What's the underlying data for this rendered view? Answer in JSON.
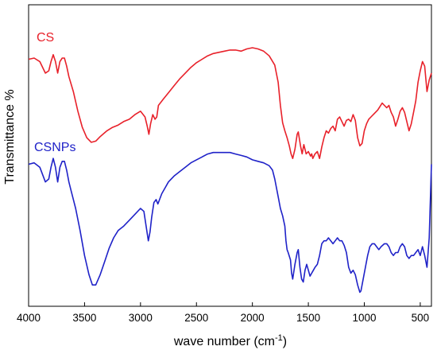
{
  "chart_data": {
    "type": "line",
    "xlabel": "wave number (cm",
    "xlabel_sup": "-1",
    "xlabel_close": ")",
    "ylabel": "Transmittance %",
    "xlim": [
      4000,
      400
    ],
    "x_reversed": true,
    "y_ticks_shown": false,
    "grid": false,
    "x_ticks": [
      "4000",
      "3500",
      "3000",
      "2500",
      "2000",
      "1500",
      "1000",
      "500"
    ],
    "series": [
      {
        "name": "CS",
        "color": "#e8212a",
        "points": [
          [
            4000,
            10
          ],
          [
            3950,
            9
          ],
          [
            3900,
            12
          ],
          [
            3850,
            22
          ],
          [
            3820,
            20
          ],
          [
            3800,
            12
          ],
          [
            3780,
            6
          ],
          [
            3760,
            12
          ],
          [
            3740,
            22
          ],
          [
            3720,
            12
          ],
          [
            3700,
            9
          ],
          [
            3680,
            9
          ],
          [
            3660,
            16
          ],
          [
            3640,
            25
          ],
          [
            3600,
            38
          ],
          [
            3560,
            55
          ],
          [
            3520,
            69
          ],
          [
            3480,
            78
          ],
          [
            3440,
            82
          ],
          [
            3400,
            81
          ],
          [
            3360,
            77
          ],
          [
            3300,
            72
          ],
          [
            3250,
            69
          ],
          [
            3200,
            67
          ],
          [
            3150,
            64
          ],
          [
            3100,
            62
          ],
          [
            3050,
            58
          ],
          [
            3000,
            55
          ],
          [
            2960,
            60
          ],
          [
            2940,
            68
          ],
          [
            2925,
            75
          ],
          [
            2910,
            66
          ],
          [
            2890,
            58
          ],
          [
            2870,
            62
          ],
          [
            2855,
            60
          ],
          [
            2840,
            50
          ],
          [
            2800,
            45
          ],
          [
            2750,
            39
          ],
          [
            2700,
            33
          ],
          [
            2650,
            27
          ],
          [
            2600,
            22
          ],
          [
            2550,
            17
          ],
          [
            2500,
            13
          ],
          [
            2450,
            10
          ],
          [
            2400,
            7
          ],
          [
            2350,
            5
          ],
          [
            2300,
            4
          ],
          [
            2250,
            3
          ],
          [
            2200,
            2
          ],
          [
            2150,
            2
          ],
          [
            2100,
            3
          ],
          [
            2050,
            1
          ],
          [
            2000,
            0
          ],
          [
            1950,
            1
          ],
          [
            1900,
            3
          ],
          [
            1850,
            7
          ],
          [
            1800,
            15
          ],
          [
            1770,
            30
          ],
          [
            1750,
            50
          ],
          [
            1730,
            65
          ],
          [
            1710,
            72
          ],
          [
            1690,
            78
          ],
          [
            1670,
            85
          ],
          [
            1655,
            92
          ],
          [
            1640,
            96
          ],
          [
            1620,
            88
          ],
          [
            1600,
            75
          ],
          [
            1590,
            73
          ],
          [
            1570,
            85
          ],
          [
            1555,
            92
          ],
          [
            1540,
            84
          ],
          [
            1520,
            92
          ],
          [
            1500,
            90
          ],
          [
            1480,
            94
          ],
          [
            1470,
            92
          ],
          [
            1460,
            96
          ],
          [
            1440,
            92
          ],
          [
            1420,
            90
          ],
          [
            1400,
            96
          ],
          [
            1380,
            86
          ],
          [
            1360,
            78
          ],
          [
            1340,
            72
          ],
          [
            1320,
            74
          ],
          [
            1300,
            70
          ],
          [
            1280,
            68
          ],
          [
            1260,
            72
          ],
          [
            1240,
            62
          ],
          [
            1220,
            60
          ],
          [
            1200,
            64
          ],
          [
            1180,
            68
          ],
          [
            1160,
            63
          ],
          [
            1140,
            62
          ],
          [
            1120,
            64
          ],
          [
            1100,
            58
          ],
          [
            1080,
            63
          ],
          [
            1060,
            78
          ],
          [
            1040,
            85
          ],
          [
            1020,
            83
          ],
          [
            1000,
            72
          ],
          [
            980,
            66
          ],
          [
            960,
            62
          ],
          [
            940,
            60
          ],
          [
            920,
            58
          ],
          [
            900,
            56
          ],
          [
            880,
            54
          ],
          [
            860,
            51
          ],
          [
            840,
            48
          ],
          [
            820,
            50
          ],
          [
            800,
            52
          ],
          [
            780,
            50
          ],
          [
            760,
            56
          ],
          [
            740,
            60
          ],
          [
            720,
            68
          ],
          [
            700,
            62
          ],
          [
            680,
            55
          ],
          [
            660,
            52
          ],
          [
            640,
            56
          ],
          [
            620,
            64
          ],
          [
            600,
            72
          ],
          [
            580,
            66
          ],
          [
            560,
            56
          ],
          [
            540,
            46
          ],
          [
            520,
            30
          ],
          [
            500,
            20
          ],
          [
            480,
            12
          ],
          [
            460,
            16
          ],
          [
            440,
            38
          ],
          [
            420,
            28
          ],
          [
            400,
            22
          ]
        ]
      },
      {
        "name": "CSNPs",
        "color": "#1f22c8",
        "points": [
          [
            4000,
            10
          ],
          [
            3950,
            9
          ],
          [
            3900,
            12
          ],
          [
            3850,
            22
          ],
          [
            3820,
            20
          ],
          [
            3800,
            12
          ],
          [
            3780,
            6
          ],
          [
            3760,
            12
          ],
          [
            3740,
            22
          ],
          [
            3720,
            12
          ],
          [
            3700,
            8
          ],
          [
            3680,
            8
          ],
          [
            3660,
            14
          ],
          [
            3640,
            22
          ],
          [
            3620,
            28
          ],
          [
            3580,
            40
          ],
          [
            3540,
            55
          ],
          [
            3500,
            72
          ],
          [
            3460,
            85
          ],
          [
            3430,
            92
          ],
          [
            3400,
            92
          ],
          [
            3360,
            85
          ],
          [
            3320,
            76
          ],
          [
            3280,
            67
          ],
          [
            3240,
            60
          ],
          [
            3200,
            55
          ],
          [
            3150,
            52
          ],
          [
            3100,
            48
          ],
          [
            3050,
            44
          ],
          [
            3000,
            40
          ],
          [
            2970,
            42
          ],
          [
            2950,
            52
          ],
          [
            2930,
            62
          ],
          [
            2915,
            56
          ],
          [
            2900,
            46
          ],
          [
            2880,
            36
          ],
          [
            2860,
            34
          ],
          [
            2845,
            37
          ],
          [
            2830,
            34
          ],
          [
            2810,
            30
          ],
          [
            2780,
            26
          ],
          [
            2750,
            22
          ],
          [
            2700,
            18
          ],
          [
            2650,
            15
          ],
          [
            2600,
            12
          ],
          [
            2550,
            9
          ],
          [
            2500,
            7
          ],
          [
            2450,
            5
          ],
          [
            2400,
            3
          ],
          [
            2350,
            2
          ],
          [
            2300,
            2
          ],
          [
            2250,
            2
          ],
          [
            2200,
            2
          ],
          [
            2150,
            3
          ],
          [
            2100,
            4
          ],
          [
            2050,
            5
          ],
          [
            2000,
            7
          ],
          [
            1950,
            8
          ],
          [
            1900,
            9
          ],
          [
            1850,
            11
          ],
          [
            1820,
            14
          ],
          [
            1800,
            20
          ],
          [
            1770,
            32
          ],
          [
            1750,
            40
          ],
          [
            1730,
            45
          ],
          [
            1710,
            52
          ],
          [
            1700,
            62
          ],
          [
            1690,
            68
          ],
          [
            1680,
            70
          ],
          [
            1660,
            75
          ],
          [
            1650,
            84
          ],
          [
            1640,
            88
          ],
          [
            1620,
            78
          ],
          [
            1600,
            70
          ],
          [
            1590,
            68
          ],
          [
            1575,
            80
          ],
          [
            1560,
            88
          ],
          [
            1545,
            90
          ],
          [
            1530,
            82
          ],
          [
            1515,
            78
          ],
          [
            1500,
            82
          ],
          [
            1485,
            86
          ],
          [
            1470,
            84
          ],
          [
            1455,
            82
          ],
          [
            1440,
            80
          ],
          [
            1420,
            78
          ],
          [
            1400,
            72
          ],
          [
            1380,
            64
          ],
          [
            1360,
            62
          ],
          [
            1340,
            62
          ],
          [
            1320,
            60
          ],
          [
            1300,
            62
          ],
          [
            1280,
            64
          ],
          [
            1260,
            62
          ],
          [
            1240,
            60
          ],
          [
            1220,
            62
          ],
          [
            1200,
            62
          ],
          [
            1180,
            65
          ],
          [
            1160,
            70
          ],
          [
            1140,
            80
          ],
          [
            1120,
            84
          ],
          [
            1100,
            82
          ],
          [
            1080,
            85
          ],
          [
            1060,
            92
          ],
          [
            1040,
            97
          ],
          [
            1030,
            96
          ],
          [
            1010,
            88
          ],
          [
            990,
            80
          ],
          [
            970,
            72
          ],
          [
            950,
            66
          ],
          [
            930,
            64
          ],
          [
            910,
            64
          ],
          [
            890,
            66
          ],
          [
            870,
            68
          ],
          [
            850,
            66
          ],
          [
            820,
            64
          ],
          [
            800,
            64
          ],
          [
            780,
            66
          ],
          [
            760,
            70
          ],
          [
            740,
            72
          ],
          [
            720,
            70
          ],
          [
            700,
            70
          ],
          [
            680,
            66
          ],
          [
            660,
            64
          ],
          [
            640,
            66
          ],
          [
            620,
            72
          ],
          [
            600,
            74
          ],
          [
            580,
            72
          ],
          [
            560,
            72
          ],
          [
            540,
            70
          ],
          [
            520,
            68
          ],
          [
            500,
            72
          ],
          [
            480,
            66
          ],
          [
            460,
            72
          ],
          [
            440,
            80
          ],
          [
            420,
            60
          ],
          [
            400,
            10
          ]
        ]
      }
    ]
  }
}
